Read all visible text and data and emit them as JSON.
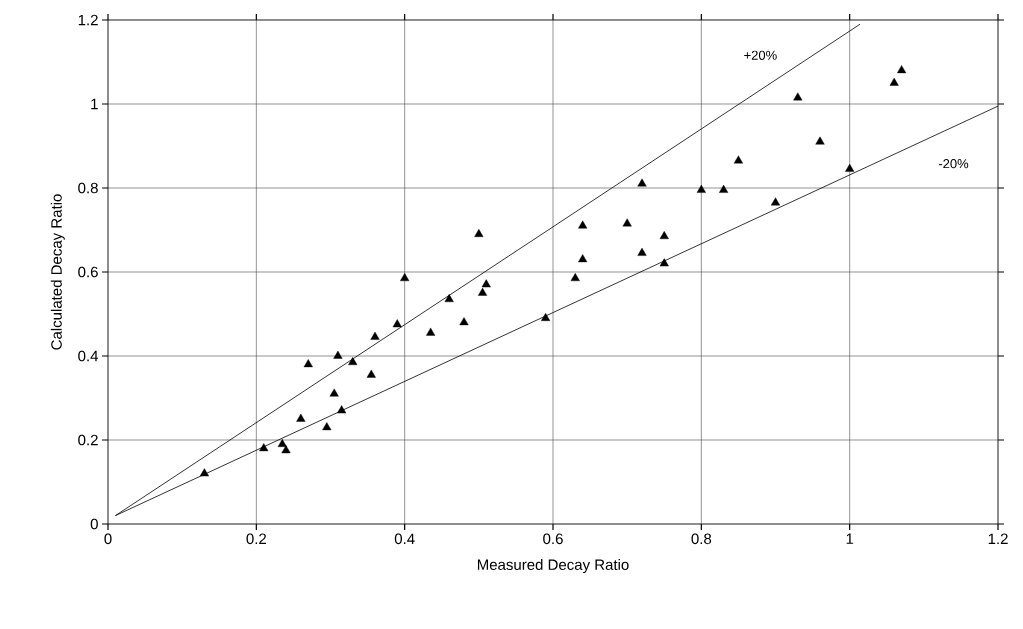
{
  "chart_data": {
    "type": "scatter",
    "xlabel": "Measured Decay Ratio",
    "ylabel": "Calculated Decay Ratio",
    "xlim": [
      0,
      1.2
    ],
    "ylim": [
      0,
      1.2
    ],
    "xticks": [
      0,
      0.2,
      0.4,
      0.6,
      0.8,
      1,
      1.2
    ],
    "yticks": [
      0,
      0.2,
      0.4,
      0.6,
      0.8,
      1,
      1.2
    ],
    "grid": true,
    "series": [
      {
        "marker": "triangle",
        "color": "#000000",
        "x": [
          0.13,
          0.21,
          0.235,
          0.24,
          0.26,
          0.27,
          0.295,
          0.305,
          0.31,
          0.315,
          0.33,
          0.355,
          0.36,
          0.39,
          0.4,
          0.435,
          0.46,
          0.48,
          0.5,
          0.505,
          0.51,
          0.59,
          0.63,
          0.64,
          0.64,
          0.7,
          0.72,
          0.72,
          0.75,
          0.75,
          0.8,
          0.83,
          0.85,
          0.9,
          0.93,
          0.96,
          1.0,
          1.06,
          1.07
        ],
        "values": [
          0.12,
          0.18,
          0.19,
          0.175,
          0.25,
          0.38,
          0.23,
          0.31,
          0.4,
          0.27,
          0.385,
          0.355,
          0.445,
          0.475,
          0.585,
          0.455,
          0.535,
          0.48,
          0.69,
          0.55,
          0.57,
          0.49,
          0.585,
          0.63,
          0.71,
          0.715,
          0.645,
          0.81,
          0.62,
          0.685,
          0.795,
          0.795,
          0.865,
          0.765,
          1.015,
          0.91,
          0.845,
          1.05,
          1.08
        ]
      },
      {
        "type": "line",
        "marker": "none",
        "color": "#000000",
        "x": [
          0.01,
          1.014
        ],
        "values": [
          0.02,
          1.19
        ]
      },
      {
        "type": "line",
        "marker": "none",
        "color": "#000000",
        "x": [
          0.01,
          1.2
        ],
        "values": [
          0.02,
          0.995
        ]
      }
    ],
    "annotations": [
      "+20%",
      "-20%"
    ]
  }
}
